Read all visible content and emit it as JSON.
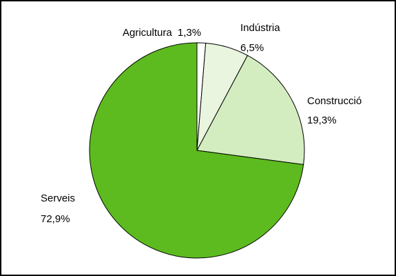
{
  "chart_data": {
    "type": "pie",
    "title": "",
    "categories": [
      "Agricultura",
      "Indústria",
      "Construcció",
      "Serveis"
    ],
    "values": [
      1.3,
      6.5,
      19.3,
      72.9
    ],
    "value_labels": [
      "1,3%",
      "6,5%",
      "19,3%",
      "72,9%"
    ],
    "colors": [
      "#ffffff",
      "#e9f5df",
      "#d3edc0",
      "#5dbb1f"
    ],
    "start_angle_deg": 0,
    "direction": "clockwise",
    "legend": "none",
    "slice_outline_color": "#000000",
    "frame_color": "#000000"
  }
}
